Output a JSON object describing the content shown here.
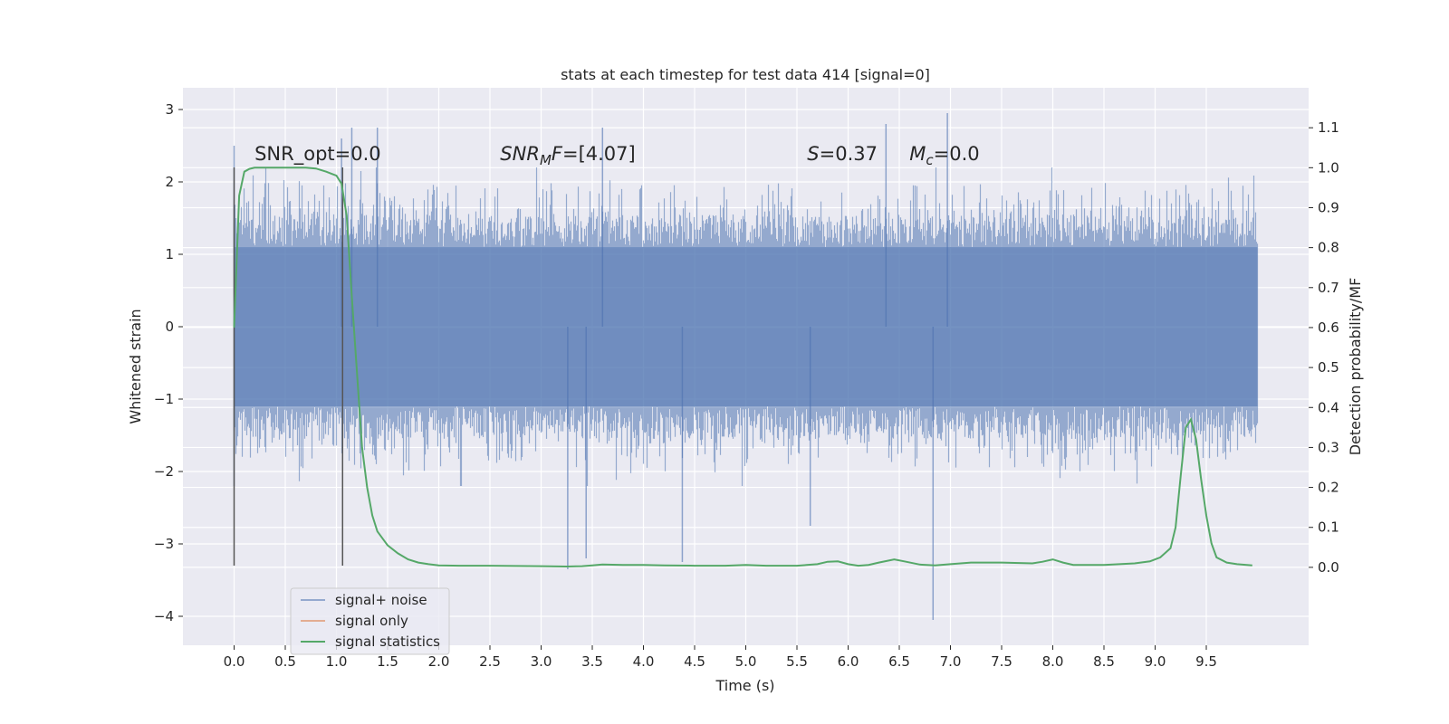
{
  "chart_data": {
    "type": "line",
    "title": "stats at each timestep for test data 414 [signal=0]",
    "xlabel": "Time (s)",
    "ylabel": "Whitened strain",
    "y2label": "Detection probability/MF",
    "xlim": [
      -0.5,
      10.5
    ],
    "ylim": [
      -4.4,
      3.3
    ],
    "y2lim": [
      -0.195,
      1.2
    ],
    "xticks": [
      0.0,
      0.5,
      1.0,
      1.5,
      2.0,
      2.5,
      3.0,
      3.5,
      4.0,
      4.5,
      5.0,
      5.5,
      6.0,
      6.5,
      7.0,
      7.5,
      8.0,
      8.5,
      9.0,
      9.5
    ],
    "xtick_labels": [
      "0.0",
      "0.5",
      "1.0",
      "1.5",
      "2.0",
      "2.5",
      "3.0",
      "3.5",
      "4.0",
      "4.5",
      "5.0",
      "5.5",
      "6.0",
      "6.5",
      "7.0",
      "7.5",
      "8.0",
      "8.5",
      "9.0",
      "9.5"
    ],
    "yticks": [
      3,
      2,
      1,
      0,
      -1,
      -2,
      -3,
      -4
    ],
    "ytick_labels": [
      "3",
      "2",
      "1",
      "0",
      "−1",
      "−2",
      "−3",
      "−4"
    ],
    "y2ticks": [
      1.1,
      1.0,
      0.9,
      0.8,
      0.7,
      0.6,
      0.5,
      0.4,
      0.3,
      0.2,
      0.1,
      0.0
    ],
    "y2tick_labels": [
      "1.1",
      "1.0",
      "0.9",
      "0.8",
      "0.7",
      "0.6",
      "0.5",
      "0.4",
      "0.3",
      "0.2",
      "0.1",
      "0.0"
    ],
    "noise": {
      "name": "signal+ noise",
      "color": "#4c72b0",
      "t_start": 0.0,
      "t_end": 10.0,
      "typical_max": 1.8,
      "typical_min": -1.8,
      "spikes": [
        {
          "t": 0.0,
          "v": 2.5
        },
        {
          "t": 0.0,
          "v": -2.2
        },
        {
          "t": 1.05,
          "v": 2.6
        },
        {
          "t": 1.15,
          "v": 2.75
        },
        {
          "t": 1.4,
          "v": 2.75
        },
        {
          "t": 3.26,
          "v": -3.35
        },
        {
          "t": 3.44,
          "v": -3.2
        },
        {
          "t": 3.6,
          "v": 2.75
        },
        {
          "t": 4.38,
          "v": -3.25
        },
        {
          "t": 5.63,
          "v": -2.75
        },
        {
          "t": 6.37,
          "v": 2.8
        },
        {
          "t": 6.83,
          "v": -4.05
        },
        {
          "t": 6.97,
          "v": 2.95
        }
      ]
    },
    "signal_only": {
      "name": "signal only",
      "color": "#dd8452",
      "visible": false
    },
    "statistic": {
      "name": "signal statistics",
      "color": "#55a868",
      "x": [
        0.0,
        0.05,
        0.1,
        0.15,
        0.2,
        0.25,
        0.3,
        0.35,
        0.4,
        0.5,
        0.6,
        0.7,
        0.8,
        0.9,
        0.95,
        1.0,
        1.05,
        1.1,
        1.15,
        1.2,
        1.25,
        1.3,
        1.35,
        1.4,
        1.5,
        1.6,
        1.7,
        1.8,
        1.9,
        2.0,
        2.2,
        2.5,
        3.0,
        3.25,
        3.4,
        3.5,
        3.6,
        3.8,
        4.0,
        4.2,
        4.5,
        4.8,
        5.0,
        5.2,
        5.5,
        5.7,
        5.8,
        5.9,
        6.0,
        6.1,
        6.2,
        6.3,
        6.45,
        6.55,
        6.7,
        6.85,
        7.0,
        7.2,
        7.5,
        7.8,
        7.9,
        8.0,
        8.1,
        8.2,
        8.5,
        8.8,
        8.95,
        9.05,
        9.15,
        9.2,
        9.25,
        9.3,
        9.35,
        9.4,
        9.45,
        9.5,
        9.55,
        9.6,
        9.7,
        9.8,
        9.95
      ],
      "y": [
        0.6,
        0.93,
        0.99,
        0.997,
        1.0,
        1.0,
        1.0,
        1.0,
        1.0,
        1.0,
        1.0,
        1.0,
        0.998,
        0.99,
        0.985,
        0.98,
        0.96,
        0.88,
        0.68,
        0.49,
        0.3,
        0.2,
        0.13,
        0.09,
        0.055,
        0.035,
        0.02,
        0.012,
        0.008,
        0.005,
        0.004,
        0.004,
        0.003,
        0.002,
        0.003,
        0.005,
        0.007,
        0.006,
        0.006,
        0.005,
        0.004,
        0.004,
        0.006,
        0.004,
        0.004,
        0.008,
        0.014,
        0.015,
        0.008,
        0.004,
        0.006,
        0.012,
        0.02,
        0.015,
        0.007,
        0.005,
        0.008,
        0.012,
        0.012,
        0.01,
        0.014,
        0.02,
        0.012,
        0.006,
        0.006,
        0.01,
        0.015,
        0.025,
        0.048,
        0.1,
        0.23,
        0.35,
        0.37,
        0.32,
        0.22,
        0.13,
        0.06,
        0.025,
        0.012,
        0.008,
        0.005
      ]
    },
    "markers": {
      "color": "#555555",
      "x": [
        0.0,
        1.06
      ],
      "y_top": 2.2,
      "y_bottom": -3.3
    },
    "annotations": [
      {
        "t": 0.2,
        "v": 2.2,
        "text": "SNR_opt=0.0"
      },
      {
        "t": 2.6,
        "v": 2.2,
        "text": "SNR_MF=[4.07]"
      },
      {
        "t": 5.6,
        "v": 2.2,
        "text": "S=0.37"
      },
      {
        "t": 6.6,
        "v": 2.2,
        "text": "M_c=0.0"
      }
    ],
    "legend_position": "lower-left",
    "legend": [
      "signal+ noise",
      "signal only",
      "signal statistics"
    ],
    "grid": true
  }
}
